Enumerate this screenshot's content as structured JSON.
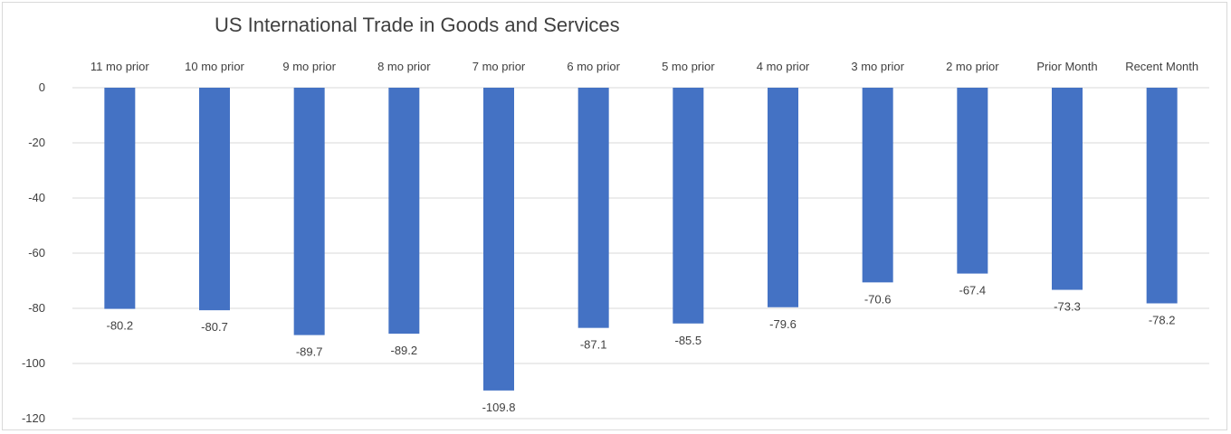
{
  "chart_data": {
    "type": "bar",
    "title": "US International Trade in Goods and Services",
    "categories": [
      "11 mo prior",
      "10 mo prior",
      "9 mo prior",
      "8 mo prior",
      "7 mo prior",
      "6 mo prior",
      "5 mo prior",
      "4 mo prior",
      "3 mo prior",
      "2 mo prior",
      "Prior Month",
      "Recent Month"
    ],
    "values": [
      -80.2,
      -80.7,
      -89.7,
      -89.2,
      -109.8,
      -87.1,
      -85.5,
      -79.6,
      -70.6,
      -67.4,
      -73.3,
      -78.2
    ],
    "data_labels": [
      "-80.2",
      "-80.7",
      "-89.7",
      "-89.2",
      "-109.8",
      "-87.1",
      "-85.5",
      "-79.6",
      "-70.6",
      "-67.4",
      "-73.3",
      "-78.2"
    ],
    "ylim": [
      -120,
      0
    ],
    "yticks": [
      0,
      -20,
      -40,
      -60,
      -80,
      -100,
      -120
    ],
    "category_axis_position": "top",
    "grid": true,
    "legend": false,
    "bar_color": "#4472c4",
    "xlabel": "",
    "ylabel": ""
  }
}
